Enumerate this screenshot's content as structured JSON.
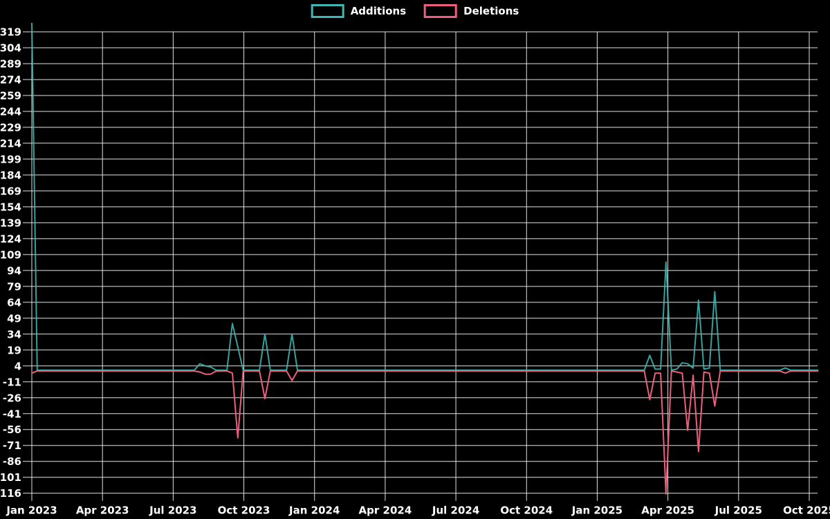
{
  "colors": {
    "background": "#000000",
    "grid": "#e2e2e2",
    "text": "#ffffff",
    "additions": "#3db8b4",
    "deletions": "#ee5f7d"
  },
  "legend": {
    "items": [
      {
        "label": "Additions",
        "color": "#3db8b4"
      },
      {
        "label": "Deletions",
        "color": "#ee5f7d"
      }
    ]
  },
  "chart_data": {
    "type": "line",
    "title": "",
    "xlabel": "",
    "ylabel": "",
    "grid": true,
    "legend_position": "top-center",
    "x_axis": {
      "unit": "week",
      "start_date": "2023-01-01",
      "end_date": "2025-10-12"
    },
    "x_ticks": [
      "Jan 2023",
      "Apr 2023",
      "Jul 2023",
      "Oct 2023",
      "Jan 2024",
      "Apr 2024",
      "Jul 2024",
      "Oct 2024",
      "Jan 2025",
      "Apr 2025",
      "Jul 2025",
      "Oct 2025"
    ],
    "y_axis": {
      "min": -116,
      "max": 319,
      "step": 15
    },
    "y_ticks": [
      319,
      304,
      289,
      274,
      259,
      244,
      229,
      214,
      199,
      184,
      169,
      154,
      139,
      124,
      109,
      94,
      79,
      64,
      49,
      34,
      19,
      4,
      -11,
      -26,
      -41,
      -56,
      -71,
      -86,
      -101,
      -116
    ],
    "series": [
      {
        "name": "Additions",
        "color": "#3db8b4"
      },
      {
        "name": "Deletions",
        "color": "#ee5f7d"
      }
    ],
    "weeks_total": 146,
    "default": {
      "additions": 0,
      "deletions": 0
    },
    "events": [
      {
        "week": 0,
        "date": "2023-01-01",
        "additions": 327,
        "deletions": -2
      },
      {
        "week": 31,
        "date": "2023-08-06",
        "additions": 6,
        "deletions": -1
      },
      {
        "week": 32,
        "date": "2023-08-13",
        "additions": 4,
        "deletions": -3
      },
      {
        "week": 33,
        "date": "2023-08-20",
        "additions": 3,
        "deletions": -3
      },
      {
        "week": 37,
        "date": "2023-09-17",
        "additions": 44,
        "deletions": -2
      },
      {
        "week": 38,
        "date": "2023-09-24",
        "additions": 22,
        "deletions": -63
      },
      {
        "week": 43,
        "date": "2023-10-29",
        "additions": 34,
        "deletions": -26
      },
      {
        "week": 48,
        "date": "2023-12-03",
        "additions": 34,
        "deletions": -9
      },
      {
        "week": 114,
        "date": "2025-03-09",
        "additions": 14,
        "deletions": -27
      },
      {
        "week": 115,
        "date": "2025-03-16",
        "additions": 1,
        "deletions": -2
      },
      {
        "week": 116,
        "date": "2025-03-23",
        "additions": 1,
        "deletions": -2
      },
      {
        "week": 117,
        "date": "2025-03-30",
        "additions": 102,
        "deletions": -116
      },
      {
        "week": 119,
        "date": "2025-04-13",
        "additions": 1,
        "deletions": -1
      },
      {
        "week": 120,
        "date": "2025-04-20",
        "additions": 7,
        "deletions": -2
      },
      {
        "week": 121,
        "date": "2025-04-27",
        "additions": 6,
        "deletions": -56
      },
      {
        "week": 122,
        "date": "2025-05-04",
        "additions": 2,
        "deletions": -4
      },
      {
        "week": 123,
        "date": "2025-05-11",
        "additions": 66,
        "deletions": -76
      },
      {
        "week": 124,
        "date": "2025-05-18",
        "additions": 1,
        "deletions": -1
      },
      {
        "week": 125,
        "date": "2025-05-25",
        "additions": 2,
        "deletions": -2
      },
      {
        "week": 126,
        "date": "2025-06-01",
        "additions": 74,
        "deletions": -33
      },
      {
        "week": 139,
        "date": "2025-08-31",
        "additions": 2,
        "deletions": -2
      }
    ]
  }
}
